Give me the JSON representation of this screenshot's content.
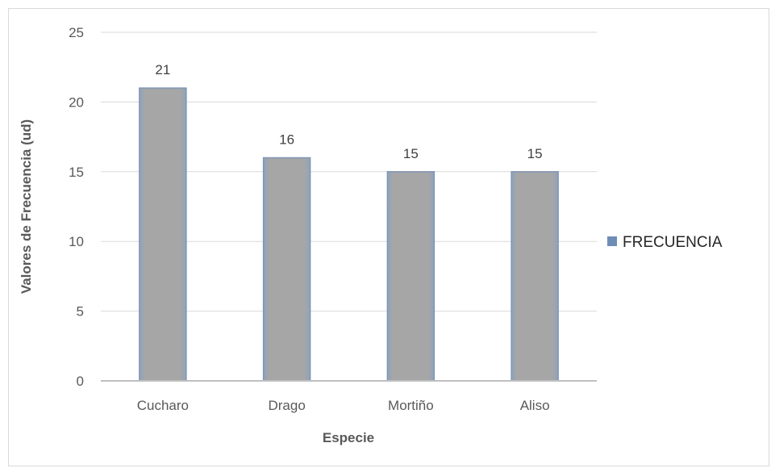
{
  "chart_data": {
    "type": "bar",
    "categories": [
      "Cucharo",
      "Drago",
      "Mortiño",
      "Aliso"
    ],
    "series": [
      {
        "name": "FRECUENCIA",
        "values": [
          21,
          16,
          15,
          15
        ]
      }
    ],
    "title": "",
    "xlabel": "Especie",
    "ylabel": "Valores de Frecuencia (ud)",
    "ylim": [
      0,
      25
    ],
    "yticks": [
      0,
      5,
      10,
      15,
      20,
      25
    ],
    "grid": true,
    "legend_position": "right",
    "colors": {
      "bar_fill": "#a6a6a6",
      "bar_edge": "#7f96b4",
      "legend_swatch": "#6e8db5",
      "grid": "#d9d9d9",
      "axis": "#bfbfbf"
    }
  }
}
